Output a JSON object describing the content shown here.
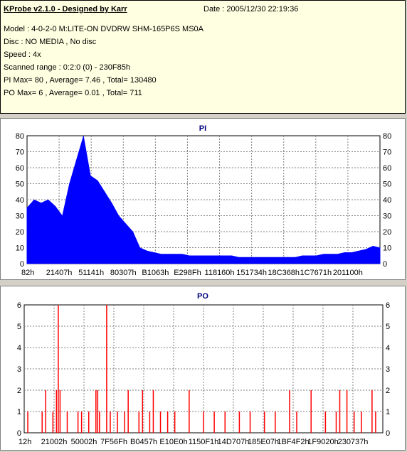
{
  "info": {
    "title": "KProbe v2.1.0 - Designed by Karr",
    "date": "Date : 2005/12/30 22:19:36",
    "lines": [
      "Model : 4-0-2-0 M:LITE-ON DVDRW SHM-165P6S MS0A",
      "Disc : NO MEDIA , No disc",
      "Speed : 4x",
      "Scanned range : 0:2:0 (0) - 230F85h",
      "PI Max= 80 , Average= 7.46 , Total= 130480",
      "PO Max= 6 , Average= 0.01 , Total= 711"
    ]
  },
  "chart_data": [
    {
      "type": "area",
      "title": "PI",
      "ylim": [
        0,
        80
      ],
      "y_ticks": [
        0,
        10,
        20,
        30,
        40,
        50,
        60,
        70,
        80
      ],
      "x_tick_labels": [
        "82h",
        "21407h",
        "51141h",
        "80307h",
        "B1063h",
        "E298Fh",
        "118160h",
        "151734h",
        "18C368h",
        "1C7671h",
        "201100h"
      ],
      "x": [
        0,
        2,
        4,
        6,
        8,
        10,
        12,
        14,
        16,
        18,
        20,
        22,
        24,
        26,
        28,
        30,
        32,
        34,
        36,
        38,
        40,
        42,
        44,
        46,
        48,
        50,
        52,
        54,
        56,
        58,
        60,
        62,
        64,
        66,
        68,
        70,
        72,
        74,
        76,
        78,
        80,
        82,
        84,
        86,
        88,
        90,
        92,
        94,
        96,
        98,
        100
      ],
      "values": [
        35,
        40,
        38,
        40,
        36,
        30,
        50,
        65,
        80,
        55,
        52,
        45,
        38,
        30,
        25,
        20,
        10,
        8,
        7,
        6,
        6,
        6,
        6,
        5,
        5,
        5,
        5,
        5,
        5,
        5,
        4,
        4,
        4,
        4,
        4,
        4,
        4,
        4,
        4,
        5,
        5,
        5,
        6,
        6,
        6,
        7,
        7,
        8,
        9,
        11,
        10
      ],
      "color": "#0000ff",
      "grid": true
    },
    {
      "type": "bar",
      "title": "PO",
      "ylim": [
        0,
        6
      ],
      "y_ticks": [
        0,
        1,
        2,
        3,
        4,
        5,
        6
      ],
      "x_tick_labels": [
        "12h",
        "21002h",
        "50002h",
        "7F56Fh",
        "B0457h",
        "E10E0h",
        "1150F1h",
        "14D707h",
        "185E07h",
        "1BF4F2h",
        "1F9020h",
        "230737h"
      ],
      "x": [
        1,
        5,
        6,
        8,
        9,
        9.5,
        10,
        12,
        15,
        16,
        18,
        20,
        20.5,
        21,
        23,
        24,
        26,
        28,
        29,
        32,
        33,
        35,
        36,
        38,
        40,
        42,
        46,
        50,
        53,
        56,
        60,
        63,
        67,
        70,
        74,
        76,
        80,
        84,
        87,
        88,
        90,
        92,
        94,
        97,
        98
      ],
      "values": [
        1,
        1,
        2,
        1,
        2,
        6,
        2,
        1,
        1,
        1,
        1,
        2,
        2,
        1,
        6,
        1,
        1,
        1,
        2,
        1,
        2,
        1,
        2,
        1,
        1,
        1,
        2,
        1,
        1,
        1,
        1,
        1,
        1,
        1,
        2,
        1,
        2,
        1,
        1,
        2,
        2,
        1,
        1,
        2,
        1
      ],
      "color": "#ff0000",
      "grid": true
    }
  ]
}
